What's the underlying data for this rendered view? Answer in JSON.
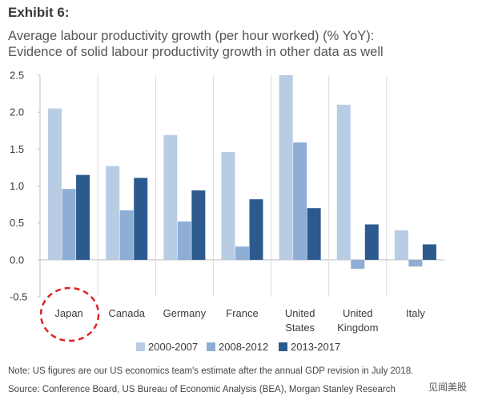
{
  "header": {
    "exhibit": "Exhibit 6:",
    "subtitle_line1": "Average labour productivity growth (per hour worked) (% YoY):",
    "subtitle_line2": "Evidence of solid labour productivity growth in other data as well"
  },
  "footer": {
    "note": "Note: US figures are our US economics team's estimate after the annual GDP revision in July 2018.",
    "source": "Source: Conference Board, US Bureau of Economic Analysis (BEA), Morgan Stanley Research",
    "watermark": "见闻美股"
  },
  "colors": {
    "series": [
      "#b8cce4",
      "#8eaed6",
      "#2d5a8e"
    ],
    "gridline": "#d9d9d9",
    "highlight": "#e02020"
  },
  "chart_data": {
    "type": "bar",
    "categories": [
      "Japan",
      "Canada",
      "Germany",
      "France",
      "United States",
      "United Kingdom",
      "Italy"
    ],
    "series": [
      {
        "name": "2000-2007",
        "values": [
          2.05,
          1.27,
          1.69,
          1.46,
          2.5,
          2.1,
          0.4
        ]
      },
      {
        "name": "2008-2012",
        "values": [
          0.96,
          0.67,
          0.52,
          0.18,
          1.59,
          -0.12,
          -0.09
        ]
      },
      {
        "name": "2013-2017",
        "values": [
          1.15,
          1.11,
          0.94,
          0.82,
          0.7,
          0.48,
          0.21
        ]
      }
    ],
    "yticks": [
      "2.5",
      "2.0",
      "1.5",
      "1.0",
      "0.5",
      "0.0",
      "-0.5"
    ],
    "ylim": [
      -0.5,
      2.5
    ],
    "grid": true,
    "legend": "bottom",
    "annotation": "Japan circled"
  }
}
